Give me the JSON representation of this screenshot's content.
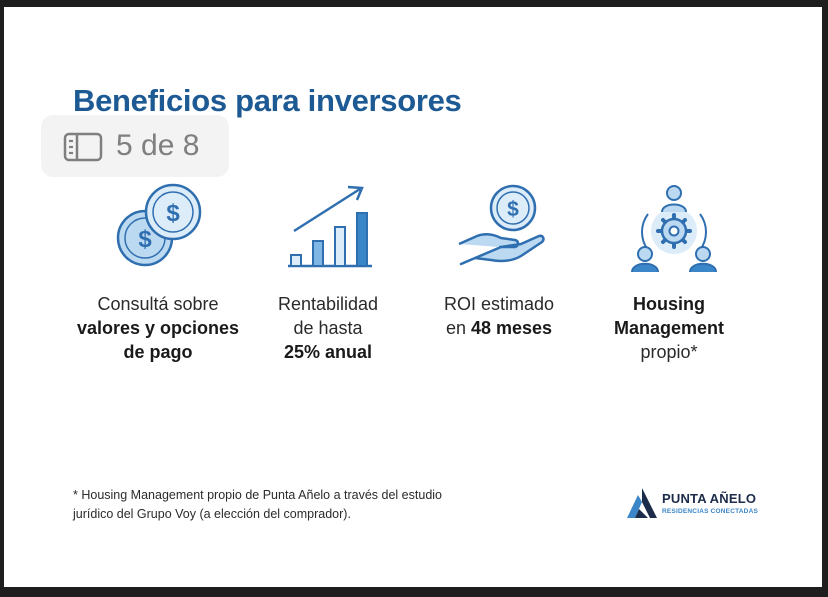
{
  "slide": {
    "title": "Beneficios para inversores",
    "page_indicator": "5 de 8",
    "benefits": [
      {
        "icon": "coins-icon",
        "line1": "Consultá sobre",
        "line2": "valores y opciones",
        "line3": "de pago"
      },
      {
        "icon": "growth-chart-icon",
        "line1": "Rentabilidad",
        "line2": "de hasta",
        "line3": "25% anual"
      },
      {
        "icon": "hand-coin-icon",
        "line1_prefix": "ROI estimado",
        "line2_prefix": "en",
        "line2_bold": "48 meses"
      },
      {
        "icon": "team-gear-icon",
        "line1": "Housing",
        "line2": "Management",
        "line3": "propio*"
      }
    ],
    "footnote_line1": "* Housing Management propio de Punta Añelo a través del estudio",
    "footnote_line2": "jurídico del Grupo Voy (a elección del comprador).",
    "brand": {
      "name": "PUNTA AÑELO",
      "tagline": "RESIDENCIAS CONECTADAS"
    }
  },
  "colors": {
    "accent": "#1d5a94",
    "icon_blue": "#3a86c8",
    "icon_light": "#bcd9f2"
  }
}
